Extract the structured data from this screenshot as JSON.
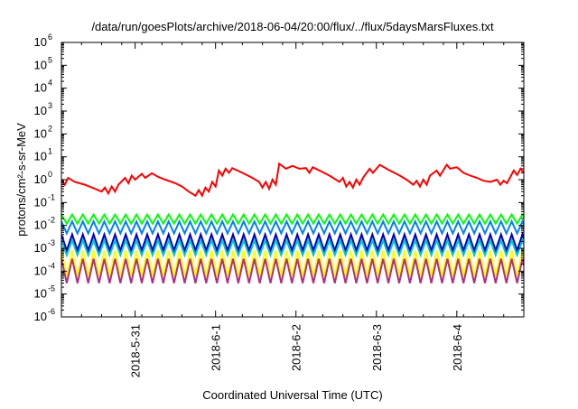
{
  "chart_data": {
    "type": "line",
    "title": "/data/run/goesPlots/archive/2018-06-04/20:00/flux/../flux/5daysMarsFluxes.txt",
    "xlabel": "Coordinated Universal Time (UTC)",
    "ylabel": "protons/cm²-s-sr-MeV",
    "yscale": "log",
    "xlim": [
      "2018-05-30T02:00",
      "2018-06-04T20:00"
    ],
    "ylim": [
      1e-06,
      1000000.0
    ],
    "ytick_labels": [
      {
        "base": "10",
        "exp": "-6"
      },
      {
        "base": "10",
        "exp": "-5"
      },
      {
        "base": "10",
        "exp": "-4"
      },
      {
        "base": "10",
        "exp": "-3"
      },
      {
        "base": "10",
        "exp": "-2"
      },
      {
        "base": "10",
        "exp": "-1"
      },
      {
        "base": "10",
        "exp": "0"
      },
      {
        "base": "10",
        "exp": "1"
      },
      {
        "base": "10",
        "exp": "2"
      },
      {
        "base": "10",
        "exp": "3"
      },
      {
        "base": "10",
        "exp": "4"
      },
      {
        "base": "10",
        "exp": "5"
      },
      {
        "base": "10",
        "exp": "6"
      }
    ],
    "xtick_labels": [
      "2018-5-31",
      "2018-6-1",
      "2018-6-2",
      "2018-6-3",
      "2018-6-4"
    ],
    "x_ticks": [
      "2018-05-31T00:00",
      "2018-06-01T00:00",
      "2018-06-02T00:00",
      "2018-06-03T00:00",
      "2018-06-04T00:00"
    ],
    "grid": false,
    "legend": "none",
    "series": [
      {
        "color": "#ff0000",
        "points": [
          [
            "2018-05-30T02:00",
            1.0
          ],
          [
            "2018-05-30T03:00",
            0.6
          ],
          [
            "2018-05-30T04:00",
            1.2
          ],
          [
            "2018-05-30T06:00",
            0.8
          ],
          [
            "2018-05-30T09:00",
            0.6
          ],
          [
            "2018-05-30T12:00",
            0.4
          ],
          [
            "2018-05-30T14:00",
            0.3
          ],
          [
            "2018-05-30T15:00",
            0.45
          ],
          [
            "2018-05-30T16:00",
            0.25
          ],
          [
            "2018-05-30T17:00",
            0.5
          ],
          [
            "2018-05-30T18:00",
            0.3
          ],
          [
            "2018-05-30T19:00",
            0.6
          ],
          [
            "2018-05-30T21:00",
            1.2
          ],
          [
            "2018-05-30T22:00",
            0.7
          ],
          [
            "2018-05-30T23:00",
            1.5
          ],
          [
            "2018-05-31T00:00",
            1.0
          ],
          [
            "2018-05-31T02:00",
            1.8
          ],
          [
            "2018-05-31T03:00",
            1.2
          ],
          [
            "2018-05-31T05:00",
            1.9
          ],
          [
            "2018-05-31T07:00",
            1.3
          ],
          [
            "2018-05-31T09:00",
            1.0
          ],
          [
            "2018-05-31T12:00",
            0.7
          ],
          [
            "2018-05-31T14:00",
            0.5
          ],
          [
            "2018-05-31T16:00",
            0.3
          ],
          [
            "2018-05-31T18:00",
            0.2
          ],
          [
            "2018-05-31T19:00",
            0.35
          ],
          [
            "2018-05-31T20:00",
            0.2
          ],
          [
            "2018-05-31T21:00",
            0.45
          ],
          [
            "2018-05-31T22:00",
            0.3
          ],
          [
            "2018-05-31T23:00",
            0.8
          ],
          [
            "2018-06-01T00:00",
            0.5
          ],
          [
            "2018-06-01T01:00",
            2.5
          ],
          [
            "2018-06-01T02:00",
            1.5
          ],
          [
            "2018-06-01T03:00",
            3.0
          ],
          [
            "2018-06-01T04:00",
            2.0
          ],
          [
            "2018-06-01T05:00",
            3.2
          ],
          [
            "2018-06-01T08:00",
            2.0
          ],
          [
            "2018-06-01T11:00",
            1.2
          ],
          [
            "2018-06-01T13:00",
            0.8
          ],
          [
            "2018-06-01T14:00",
            0.45
          ],
          [
            "2018-06-01T15:00",
            0.8
          ],
          [
            "2018-06-01T16:00",
            0.4
          ],
          [
            "2018-06-01T17:00",
            1.0
          ],
          [
            "2018-06-01T18:00",
            0.6
          ],
          [
            "2018-06-01T19:00",
            5.0
          ],
          [
            "2018-06-01T21:00",
            3.0
          ],
          [
            "2018-06-01T23:00",
            4.0
          ],
          [
            "2018-06-02T01:00",
            3.0
          ],
          [
            "2018-06-02T03:00",
            3.2
          ],
          [
            "2018-06-02T04:00",
            2.0
          ],
          [
            "2018-06-02T05:00",
            3.5
          ],
          [
            "2018-06-02T07:00",
            2.5
          ],
          [
            "2018-06-02T10:00",
            1.5
          ],
          [
            "2018-06-02T13:00",
            0.8
          ],
          [
            "2018-06-02T14:00",
            1.2
          ],
          [
            "2018-06-02T15:00",
            0.5
          ],
          [
            "2018-06-02T16:00",
            0.8
          ],
          [
            "2018-06-02T17:00",
            0.45
          ],
          [
            "2018-06-02T18:00",
            1.0
          ],
          [
            "2018-06-02T19:00",
            0.6
          ],
          [
            "2018-06-02T20:00",
            1.2
          ],
          [
            "2018-06-02T22:00",
            3.0
          ],
          [
            "2018-06-02T23:00",
            2.0
          ],
          [
            "2018-06-03T01:00",
            4.5
          ],
          [
            "2018-06-03T04:00",
            2.5
          ],
          [
            "2018-06-03T07:00",
            1.5
          ],
          [
            "2018-06-03T09:00",
            1.0
          ],
          [
            "2018-06-03T11:00",
            0.6
          ],
          [
            "2018-06-03T12:00",
            0.9
          ],
          [
            "2018-06-03T13:00",
            0.5
          ],
          [
            "2018-06-03T14:00",
            1.0
          ],
          [
            "2018-06-03T15:00",
            0.6
          ],
          [
            "2018-06-03T16:00",
            1.5
          ],
          [
            "2018-06-03T18:00",
            2.5
          ],
          [
            "2018-06-03T19:00",
            1.5
          ],
          [
            "2018-06-03T21:00",
            4.5
          ],
          [
            "2018-06-03T22:00",
            3.0
          ],
          [
            "2018-06-04T00:00",
            3.5
          ],
          [
            "2018-06-04T02:00",
            2.0
          ],
          [
            "2018-06-04T04:00",
            1.5
          ],
          [
            "2018-06-04T06:00",
            1.2
          ],
          [
            "2018-06-04T08:00",
            0.9
          ],
          [
            "2018-06-04T10:00",
            0.8
          ],
          [
            "2018-06-04T12:00",
            1.0
          ],
          [
            "2018-06-04T13:00",
            0.6
          ],
          [
            "2018-06-04T14:00",
            0.9
          ],
          [
            "2018-06-04T15:00",
            0.7
          ],
          [
            "2018-06-04T17:00",
            2.5
          ],
          [
            "2018-06-04T18:00",
            1.6
          ],
          [
            "2018-06-04T19:00",
            3.0
          ],
          [
            "2018-06-04T20:00",
            2.0
          ]
        ]
      },
      {
        "color": "#00ff00",
        "periodic": {
          "period_hours": 3.2,
          "peak": 0.03,
          "trough": 0.012
        }
      },
      {
        "color": "#0080ff",
        "periodic": {
          "period_hours": 3.2,
          "peak": 0.015,
          "trough": 0.0045
        }
      },
      {
        "color": "#0000c0",
        "periodic": {
          "period_hours": 3.2,
          "peak": 0.004,
          "trough": 0.0008
        }
      },
      {
        "color": "#00c8c8",
        "periodic": {
          "period_hours": 3.2,
          "peak": 0.0022,
          "trough": 0.0005
        }
      },
      {
        "color": "#ffff00",
        "periodic": {
          "period_hours": 3.2,
          "peak": 0.0008,
          "trough": 6e-05
        }
      },
      {
        "color": "#b03080",
        "periodic": {
          "period_hours": 3.2,
          "peak": 0.00035,
          "trough": 3e-05
        }
      }
    ]
  }
}
